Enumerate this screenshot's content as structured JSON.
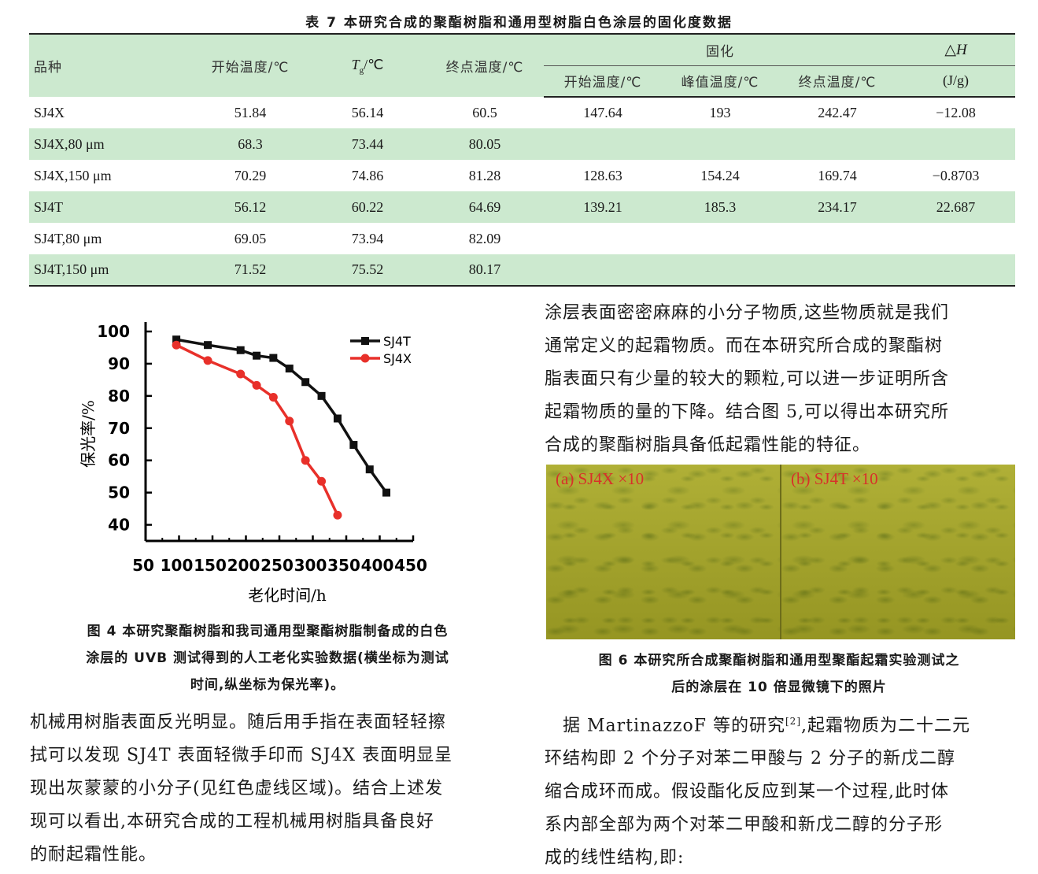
{
  "table": {
    "caption": "表 7 本研究合成的聚酯树脂和通用型树脂白色涂层的固化度数据",
    "headers": {
      "variety": "品种",
      "start_temp": "开始温度/℃",
      "tg_main": "T",
      "tg_sub": "g",
      "tg_unit": "/℃",
      "end_temp": "终点温度/℃",
      "cure_group": "固化",
      "cure_start": "开始温度/℃",
      "cure_peak": "峰值温度/℃",
      "cure_end": "终点温度/℃",
      "dh_main": "△",
      "dh_var": "H",
      "dh_unit": "(J/g)"
    },
    "rows": [
      {
        "name": "SJ4X",
        "start": "51.84",
        "tg": "56.14",
        "end": "60.5",
        "c_start": "147.64",
        "c_peak": "193",
        "c_end": "242.47",
        "dh": "−12.08"
      },
      {
        "name": "SJ4X,80 μm",
        "start": "68.3",
        "tg": "73.44",
        "end": "80.05",
        "c_start": "",
        "c_peak": "",
        "c_end": "",
        "dh": ""
      },
      {
        "name": "SJ4X,150 μm",
        "start": "70.29",
        "tg": "74.86",
        "end": "81.28",
        "c_start": "128.63",
        "c_peak": "154.24",
        "c_end": "169.74",
        "dh": "−0.8703"
      },
      {
        "name": "SJ4T",
        "start": "56.12",
        "tg": "60.22",
        "end": "64.69",
        "c_start": "139.21",
        "c_peak": "185.3",
        "c_end": "234.17",
        "dh": "22.687"
      },
      {
        "name": "SJ4T,80 μm",
        "start": "69.05",
        "tg": "73.94",
        "end": "82.09",
        "c_start": "",
        "c_peak": "",
        "c_end": "",
        "dh": ""
      },
      {
        "name": "SJ4T,150 μm",
        "start": "71.52",
        "tg": "75.52",
        "end": "80.17",
        "c_start": "",
        "c_peak": "",
        "c_end": "",
        "dh": ""
      }
    ]
  },
  "chart_data": {
    "type": "line",
    "xlabel": "老化时间/h",
    "ylabel": "保光率/%",
    "xlim": [
      50,
      450
    ],
    "ylim": [
      40,
      100
    ],
    "xticks": [
      50,
      100,
      150,
      200,
      250,
      300,
      350,
      400,
      450
    ],
    "yticks": [
      40,
      50,
      60,
      70,
      80,
      90,
      100
    ],
    "legend_position": "top-right",
    "series": [
      {
        "name": "SJ4T",
        "color": "#111111",
        "marker": "square",
        "x": [
          96,
          143,
          192,
          216,
          241,
          265,
          289,
          313,
          337,
          361,
          385,
          410
        ],
        "y": [
          97.5,
          95.8,
          94.2,
          92.5,
          91.8,
          88.5,
          84.3,
          80,
          73,
          64.8,
          57.2,
          50
        ]
      },
      {
        "name": "SJ4X",
        "color": "#e8302a",
        "marker": "circle",
        "x": [
          96,
          143,
          192,
          216,
          241,
          265,
          289,
          313,
          337
        ],
        "y": [
          95.8,
          91,
          86.8,
          83.3,
          79.6,
          72.2,
          60,
          53.5,
          43
        ]
      }
    ]
  },
  "fig4_caption": [
    "图 4 本研究聚酯树脂和我司通用型聚酯树脂制备成的白色",
    "涂层的 UVB 测试得到的人工老化实验数据(横坐标为测试",
    "时间,纵坐标为保光率)。"
  ],
  "left_text": [
    "机械用树脂表面反光明显。随后用手指在表面轻轻擦",
    "拭可以发现 SJ4T 表面轻微手印而 SJ4X 表面明显呈",
    "现出灰蒙蒙的小分子(见红色虚线区域)。结合上述发",
    "现可以看出,本研究合成的工程机械用树脂具备良好",
    "的耐起霜性能。"
  ],
  "right_text_top": [
    "涂层表面密密麻麻的小分子物质,这些物质就是我们",
    "通常定义的起霜物质。而在本研究所合成的聚酯树",
    "脂表面只有少量的较大的颗粒,可以进一步证明所含",
    "起霜物质的量的下降。结合图 5,可以得出本研究所",
    "合成的聚酯树脂具备低起霜性能的特征。"
  ],
  "photos": {
    "a_label": "(a) SJ4X ×10",
    "b_label": "(b) SJ4T ×10"
  },
  "fig6_caption": [
    "图 6 本研究所合成聚酯树脂和通用型聚酯起霜实验测试之",
    "后的涂层在 10 倍显微镜下的照片"
  ],
  "right_text_bottom": {
    "line1_pre": "　据 MartinazzoF 等的研究",
    "line1_ref": "[2]",
    "line1_post": ",起霜物质为二十二元",
    "lines": [
      "环结构即 2 个分子对苯二甲酸与 2 分子的新戊二醇",
      "缩合成环而成。假设酯化反应到某一个过程,此时体",
      "系内部全部为两个对苯二甲酸和新戊二醇的分子形",
      "成的线性结构,即:"
    ]
  }
}
